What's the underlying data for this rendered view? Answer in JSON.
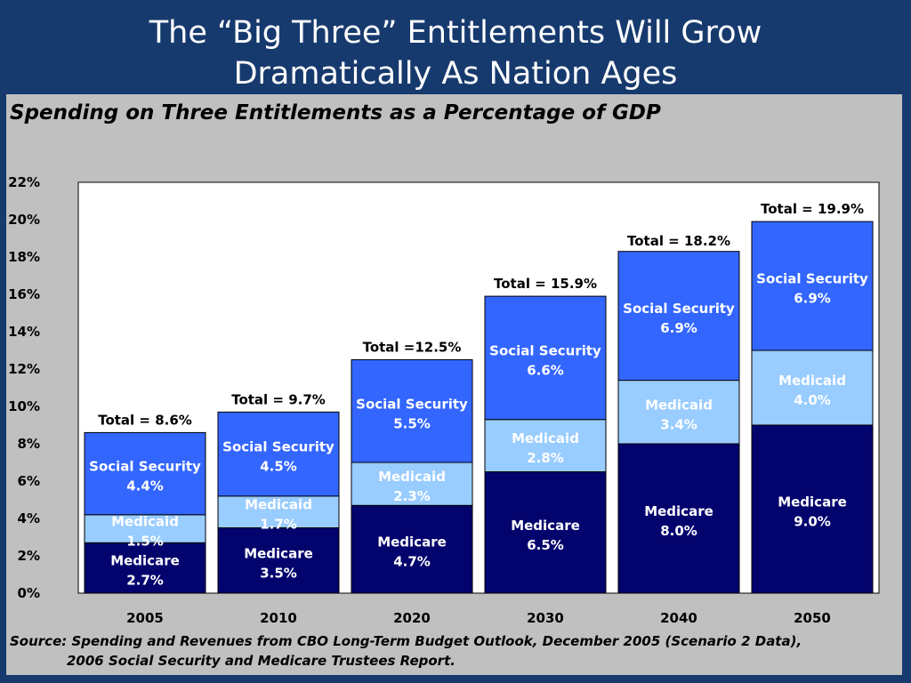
{
  "slide_title_line1": "The “Big Three” Entitlements Will Grow",
  "slide_title_line2": "Dramatically As Nation Ages",
  "chart_subtitle": "Spending on Three Entitlements as a Percentage of GDP",
  "source_line1": "Source: Spending and Revenues from CBO Long-Term Budget Outlook, December 2005 (Scenario 2 Data),",
  "source_line2": "2006 Social Security and Medicare Trustees Report.",
  "colors": {
    "medicare": "#03036e",
    "medicaid": "#99ccff",
    "social_security": "#3366ff",
    "plot_bg": "#ffffff",
    "panel_bg": "#c0c0c0",
    "slide_bg": "#173a6e"
  },
  "chart_data": {
    "type": "bar",
    "stacked": true,
    "categories": [
      "2005",
      "2010",
      "2020",
      "2030",
      "2040",
      "2050"
    ],
    "ylim": [
      0,
      22
    ],
    "yticks": [
      "0%",
      "2%",
      "4%",
      "6%",
      "8%",
      "10%",
      "12%",
      "14%",
      "16%",
      "18%",
      "20%",
      "22%"
    ],
    "series": [
      {
        "name": "Medicare",
        "values": [
          2.7,
          3.5,
          4.7,
          6.5,
          8.0,
          9.0
        ],
        "labels": [
          "2.7%",
          "3.5%",
          "4.7%",
          "6.5%",
          "8.0%",
          "9.0%"
        ]
      },
      {
        "name": "Medicaid",
        "values": [
          1.5,
          1.7,
          2.3,
          2.8,
          3.4,
          4.0
        ],
        "labels": [
          "1.5%",
          "1.7%",
          "2.3%",
          "2.8%",
          "3.4%",
          "4.0%"
        ]
      },
      {
        "name": "Social Security",
        "values": [
          4.4,
          4.5,
          5.5,
          6.6,
          6.9,
          6.9
        ],
        "labels": [
          "4.4%",
          "4.5%",
          "5.5%",
          "6.6%",
          "6.9%",
          "6.9%"
        ]
      }
    ],
    "totals": [
      8.6,
      9.7,
      12.5,
      15.9,
      18.2,
      19.9
    ],
    "total_labels": [
      "Total = 8.6%",
      "Total = 9.7%",
      "Total =12.5%",
      "Total = 15.9%",
      "Total = 18.2%",
      "Total = 19.9%"
    ]
  }
}
